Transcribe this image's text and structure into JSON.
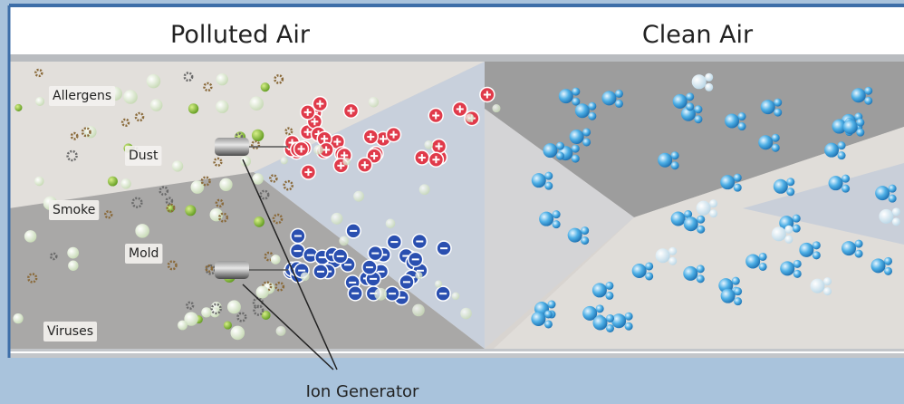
{
  "header": {
    "left_title": "Polluted Air",
    "right_title": "Clean Air"
  },
  "pollutants": [
    "Allergens",
    "Dust",
    "Smoke",
    "Mold",
    "Viruses"
  ],
  "device": {
    "label": "Ion Generator"
  }
}
